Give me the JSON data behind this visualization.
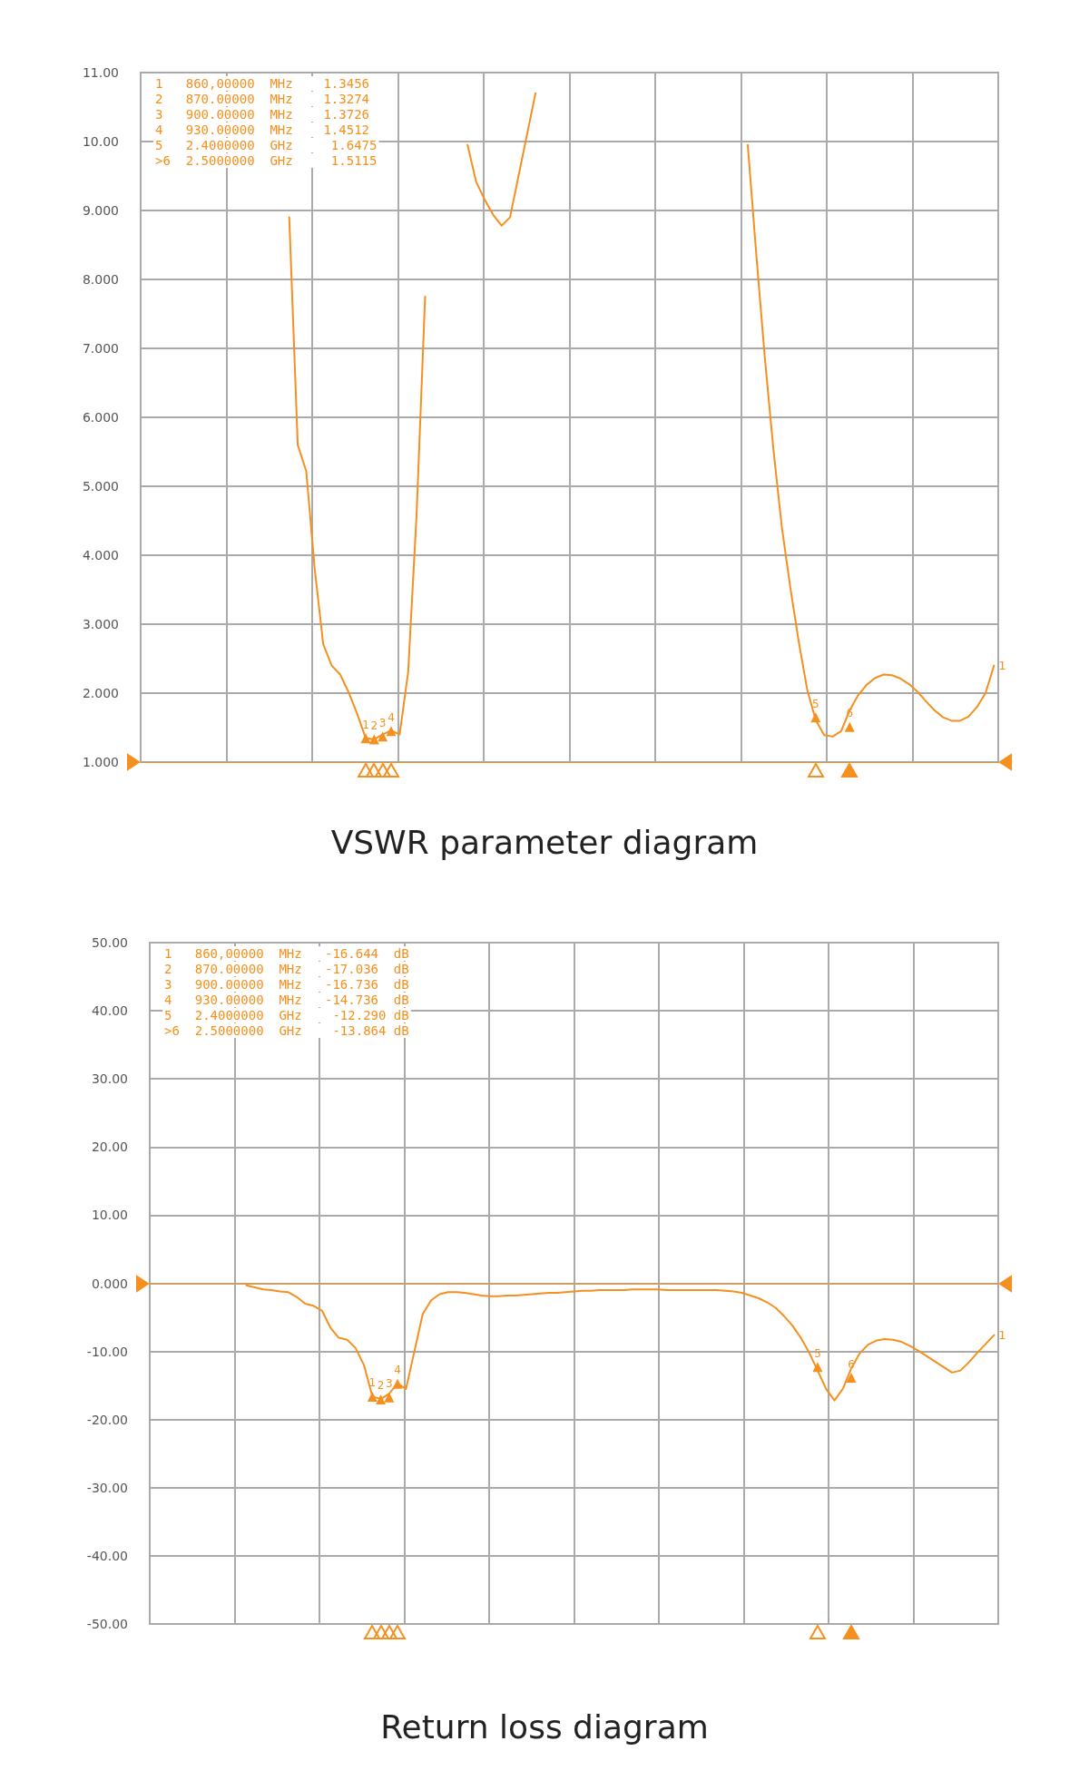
{
  "chart_data": [
    {
      "type": "line",
      "title": "VSWR parameter diagram",
      "tick_labels": "y",
      "grid": true,
      "categories": [
        null,
        null,
        null,
        null,
        null,
        null,
        null,
        null,
        null,
        null,
        null,
        null,
        null,
        null,
        null,
        null,
        null,
        null,
        null,
        null,
        null,
        null,
        null,
        null,
        null,
        null,
        null,
        null,
        null,
        null,
        null,
        null,
        null,
        null,
        null,
        null,
        null,
        null,
        null,
        null,
        null,
        null,
        null,
        null,
        null,
        null,
        null,
        null,
        null,
        null,
        null,
        null,
        null,
        null,
        null,
        null,
        null,
        null,
        null,
        null,
        null,
        null,
        null,
        null,
        null,
        null,
        null,
        null,
        null,
        null,
        null,
        null,
        null,
        null,
        null,
        null,
        null,
        null,
        null,
        null,
        null,
        null,
        null,
        null,
        null,
        null,
        null,
        null,
        null,
        null,
        null,
        null,
        null,
        null,
        null,
        null,
        null,
        null,
        null,
        null,
        null
      ],
      "ylim": [
        1,
        11
      ],
      "yticks": [
        {
          "value": 1,
          "label": "1.000"
        },
        {
          "value": 2,
          "label": "2.000"
        },
        {
          "value": 3,
          "label": "3.000"
        },
        {
          "value": 4,
          "label": "4.000"
        },
        {
          "value": 5,
          "label": "5.000"
        },
        {
          "value": 6,
          "label": "6.000"
        },
        {
          "value": 7,
          "label": "7.000"
        },
        {
          "value": 8,
          "label": "8.000"
        },
        {
          "value": 9,
          "label": "9.000"
        },
        {
          "value": 10,
          "label": "10.00"
        },
        {
          "value": 11,
          "label": "11.00"
        }
      ],
      "ref_lines": [
        {
          "axis": "y",
          "value": 1,
          "color": "#f5901e"
        }
      ],
      "annotations": [
        "1   860,00000  MHz    1.3456",
        "2   870.00000  MHz    1.3274",
        "3   900.00000  MHz    1.3726",
        "4   930.00000  MHz    1.4512",
        "5   2.4000000  GHz     1.6475",
        ">6  2.5000000  GHz     1.5115",
        "1",
        "2",
        "3",
        "4",
        "5",
        "6",
        "1"
      ],
      "series": [
        {
          "color": "#f5901e",
          "marker": "none",
          "values": [
            null,
            null,
            null,
            null,
            null,
            null,
            null,
            null,
            null,
            null,
            null,
            null,
            null,
            null,
            null,
            null,
            null,
            8.9,
            5.6,
            5.22,
            3.8,
            2.71,
            2.4,
            2.27,
            2.01,
            1.7,
            1.35,
            1.33,
            1.4,
            1.46,
            1.4,
            2.3,
            4.6,
            7.75,
            null,
            null,
            null,
            null,
            9.95,
            9.42,
            9.16,
            8.94,
            8.78,
            8.9,
            9.5,
            10.1,
            10.7,
            null,
            null,
            null,
            null,
            null,
            null,
            null,
            null,
            null,
            null,
            null,
            null,
            null,
            null,
            null,
            null,
            null,
            null,
            null,
            null,
            null,
            null,
            null,
            null,
            9.95,
            8.37,
            6.88,
            5.56,
            4.42,
            3.54,
            2.75,
            2.05,
            1.61,
            1.39,
            1.37,
            1.45,
            1.75,
            1.97,
            2.12,
            2.22,
            2.27,
            2.26,
            2.21,
            2.13,
            2.02,
            1.88,
            1.75,
            1.65,
            1.6,
            1.6,
            1.66,
            1.8,
            2.0,
            2.4
          ]
        },
        {
          "type": "scatter",
          "color": "#f5901e",
          "marker": "triangle",
          "values": [
            null,
            null,
            null,
            null,
            null,
            null,
            null,
            null,
            null,
            null,
            null,
            null,
            null,
            null,
            null,
            null,
            null,
            null,
            null,
            null,
            null,
            null,
            null,
            null,
            null,
            null,
            1.3456,
            1.3274,
            1.3726,
            1.4512,
            null,
            null,
            null,
            null,
            null,
            null,
            null,
            null,
            null,
            null,
            null,
            null,
            null,
            null,
            null,
            null,
            null,
            null,
            null,
            null,
            null,
            null,
            null,
            null,
            null,
            null,
            null,
            null,
            null,
            null,
            null,
            null,
            null,
            null,
            null,
            null,
            null,
            null,
            null,
            null,
            null,
            null,
            null,
            null,
            null,
            null,
            null,
            null,
            null,
            1.6475,
            null,
            null,
            null,
            1.5115,
            null,
            null,
            null,
            null,
            null,
            null,
            null,
            null,
            null,
            null,
            null,
            null,
            null,
            null,
            null,
            null,
            null
          ]
        }
      ]
    },
    {
      "type": "line",
      "title": "Return loss diagram",
      "tick_labels": "y",
      "grid": true,
      "categories": [
        null,
        null,
        null,
        null,
        null,
        null,
        null,
        null,
        null,
        null,
        null,
        null,
        null,
        null,
        null,
        null,
        null,
        null,
        null,
        null,
        null,
        null,
        null,
        null,
        null,
        null,
        null,
        null,
        null,
        null,
        null,
        null,
        null,
        null,
        null,
        null,
        null,
        null,
        null,
        null,
        null,
        null,
        null,
        null,
        null,
        null,
        null,
        null,
        null,
        null,
        null,
        null,
        null,
        null,
        null,
        null,
        null,
        null,
        null,
        null,
        null,
        null,
        null,
        null,
        null,
        null,
        null,
        null,
        null,
        null,
        null,
        null,
        null,
        null,
        null,
        null,
        null,
        null,
        null,
        null,
        null,
        null,
        null,
        null,
        null,
        null,
        null,
        null,
        null,
        null,
        null,
        null,
        null,
        null,
        null,
        null,
        null,
        null,
        null,
        null,
        null
      ],
      "ylim": [
        -50,
        50
      ],
      "yticks": [
        {
          "value": -50,
          "label": "-50.00"
        },
        {
          "value": -40,
          "label": "-40.00"
        },
        {
          "value": -30,
          "label": "-30.00"
        },
        {
          "value": -20,
          "label": "-20.00"
        },
        {
          "value": -10,
          "label": "-10.00"
        },
        {
          "value": 0,
          "label": "0.000"
        },
        {
          "value": 10,
          "label": "10.00"
        },
        {
          "value": 20,
          "label": "20.00"
        },
        {
          "value": 30,
          "label": "30.00"
        },
        {
          "value": 40,
          "label": "40.00"
        },
        {
          "value": 50,
          "label": "50.00"
        }
      ],
      "ref_lines": [
        {
          "axis": "y",
          "value": 0,
          "color": "#f5901e"
        }
      ],
      "annotations": [
        "1   860,00000  MHz   -16.644  dB",
        "2   870.00000  MHz   -17.036  dB",
        "3   900.00000  MHz   -16.736  dB",
        "4   930.00000  MHz   -14.736  dB",
        "5   2.4000000  GHz    -12.290 dB",
        ">6  2.5000000  GHz    -13.864 dB",
        "1",
        "2",
        "3",
        "4",
        "5",
        "6",
        "1"
      ],
      "series": [
        {
          "color": "#f5901e",
          "marker": "none",
          "values": [
            null,
            null,
            null,
            null,
            null,
            null,
            null,
            null,
            null,
            null,
            null,
            -0.3,
            -0.6,
            -0.9,
            -1.0,
            -1.2,
            -1.3,
            -2.0,
            -3.0,
            -3.3,
            -4.0,
            -6.5,
            -8.0,
            -8.3,
            -9.5,
            -12.0,
            -16.6,
            -17.0,
            -16.2,
            -14.7,
            -15.5,
            -10.0,
            -4.5,
            -2.5,
            -1.6,
            -1.3,
            -1.3,
            -1.4,
            -1.6,
            -1.8,
            -1.9,
            -1.9,
            -1.8,
            -1.8,
            -1.7,
            -1.6,
            -1.5,
            -1.4,
            -1.4,
            -1.3,
            -1.2,
            -1.1,
            -1.1,
            -1.0,
            -1.0,
            -1.0,
            -1.0,
            -0.9,
            -0.9,
            -0.9,
            -0.9,
            -1.0,
            -1.0,
            -1.0,
            -1.0,
            -1.0,
            -1.0,
            -1.0,
            -1.1,
            -1.2,
            -1.4,
            -1.8,
            -2.2,
            -2.8,
            -3.6,
            -4.8,
            -6.2,
            -8.0,
            -10.2,
            -12.8,
            -15.5,
            -17.2,
            -15.5,
            -12.5,
            -10.3,
            -9.0,
            -8.4,
            -8.2,
            -8.3,
            -8.6,
            -9.2,
            -9.9,
            -10.7,
            -11.5,
            -12.3,
            -13.1,
            -12.8,
            -11.6,
            -10.2,
            -8.9,
            -7.6
          ]
        },
        {
          "type": "scatter",
          "color": "#f5901e",
          "marker": "triangle",
          "values": [
            null,
            null,
            null,
            null,
            null,
            null,
            null,
            null,
            null,
            null,
            null,
            null,
            null,
            null,
            null,
            null,
            null,
            null,
            null,
            null,
            null,
            null,
            null,
            null,
            null,
            null,
            -16.644,
            -17.036,
            -16.736,
            -14.736,
            null,
            null,
            null,
            null,
            null,
            null,
            null,
            null,
            null,
            null,
            null,
            null,
            null,
            null,
            null,
            null,
            null,
            null,
            null,
            null,
            null,
            null,
            null,
            null,
            null,
            null,
            null,
            null,
            null,
            null,
            null,
            null,
            null,
            null,
            null,
            null,
            null,
            null,
            null,
            null,
            null,
            null,
            null,
            null,
            null,
            null,
            null,
            null,
            null,
            -12.29,
            null,
            null,
            null,
            -13.864,
            null,
            null,
            null,
            null,
            null,
            null,
            null,
            null,
            null,
            null,
            null,
            null,
            null,
            null,
            null,
            null,
            null
          ]
        }
      ]
    }
  ]
}
